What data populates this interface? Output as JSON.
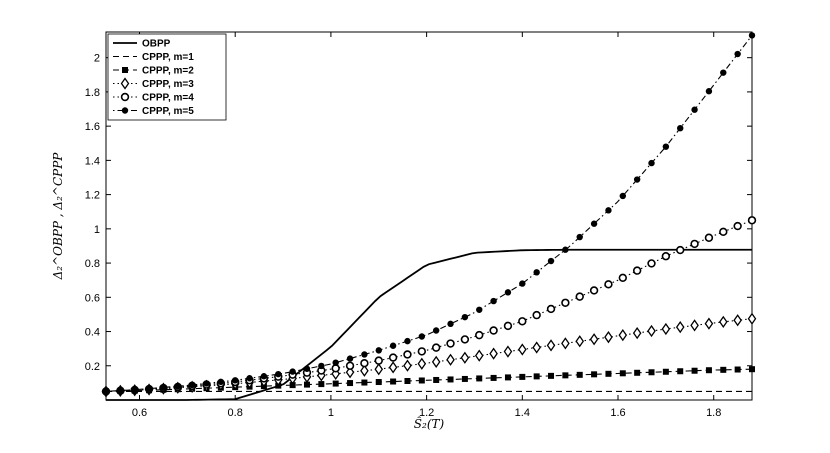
{
  "chart_data": {
    "type": "line",
    "title": "",
    "xlabel": "Ŝ₂(T)",
    "ylabel": "Δ₂^OBPP , Δ₂^CPPP",
    "xlim": [
      0.53,
      1.88
    ],
    "ylim": [
      0.0,
      2.15
    ],
    "xticks": [
      "0.6",
      "0.8",
      "1",
      "1.2",
      "1.4",
      "1.6",
      "1.8"
    ],
    "yticks": [
      "0.2",
      "0.4",
      "0.6",
      "0.8",
      "1",
      "1.2",
      "1.4",
      "1.6",
      "1.8",
      "2"
    ],
    "xtick_values": [
      0.6,
      0.8,
      1.0,
      1.2,
      1.4,
      1.6,
      1.8
    ],
    "ytick_values": [
      0.2,
      0.4,
      0.6,
      0.8,
      1.0,
      1.2,
      1.4,
      1.6,
      1.8,
      2.0
    ],
    "grid": false,
    "legend_position": "top-left",
    "x": [
      0.53,
      0.6,
      0.7,
      0.8,
      0.9,
      1.0,
      1.1,
      1.2,
      1.3,
      1.4,
      1.5,
      1.6,
      1.7,
      1.8,
      1.88
    ],
    "series": [
      {
        "name": "OBPP",
        "style": "solid",
        "marker": "none",
        "values": [
          0.0,
          0.0,
          0.0,
          0.005,
          0.09,
          0.31,
          0.6,
          0.79,
          0.86,
          0.875,
          0.878,
          0.878,
          0.878,
          0.878,
          0.878
        ]
      },
      {
        "name": "CPPP, m=1",
        "style": "dashed",
        "marker": "none",
        "values": [
          0.05,
          0.05,
          0.05,
          0.05,
          0.05,
          0.05,
          0.05,
          0.05,
          0.05,
          0.05,
          0.05,
          0.05,
          0.05,
          0.05,
          0.05
        ]
      },
      {
        "name": "CPPP, m=2",
        "style": "dashed",
        "marker": "square",
        "values": [
          0.05,
          0.055,
          0.065,
          0.075,
          0.085,
          0.095,
          0.105,
          0.115,
          0.125,
          0.135,
          0.145,
          0.155,
          0.165,
          0.175,
          0.18
        ]
      },
      {
        "name": "CPPP, m=3",
        "style": "dotted",
        "marker": "diamond",
        "values": [
          0.05,
          0.058,
          0.075,
          0.095,
          0.12,
          0.15,
          0.18,
          0.215,
          0.255,
          0.295,
          0.335,
          0.375,
          0.415,
          0.45,
          0.475
        ]
      },
      {
        "name": "CPPP, m=4",
        "style": "dotted",
        "marker": "circle",
        "values": [
          0.05,
          0.06,
          0.08,
          0.105,
          0.14,
          0.18,
          0.23,
          0.29,
          0.37,
          0.46,
          0.58,
          0.7,
          0.84,
          0.96,
          1.05
        ]
      },
      {
        "name": "CPPP, m=5",
        "style": "dashdot",
        "marker": "dot",
        "values": [
          0.05,
          0.062,
          0.085,
          0.115,
          0.155,
          0.21,
          0.29,
          0.38,
          0.51,
          0.68,
          0.9,
          1.16,
          1.48,
          1.84,
          2.13
        ]
      }
    ]
  }
}
